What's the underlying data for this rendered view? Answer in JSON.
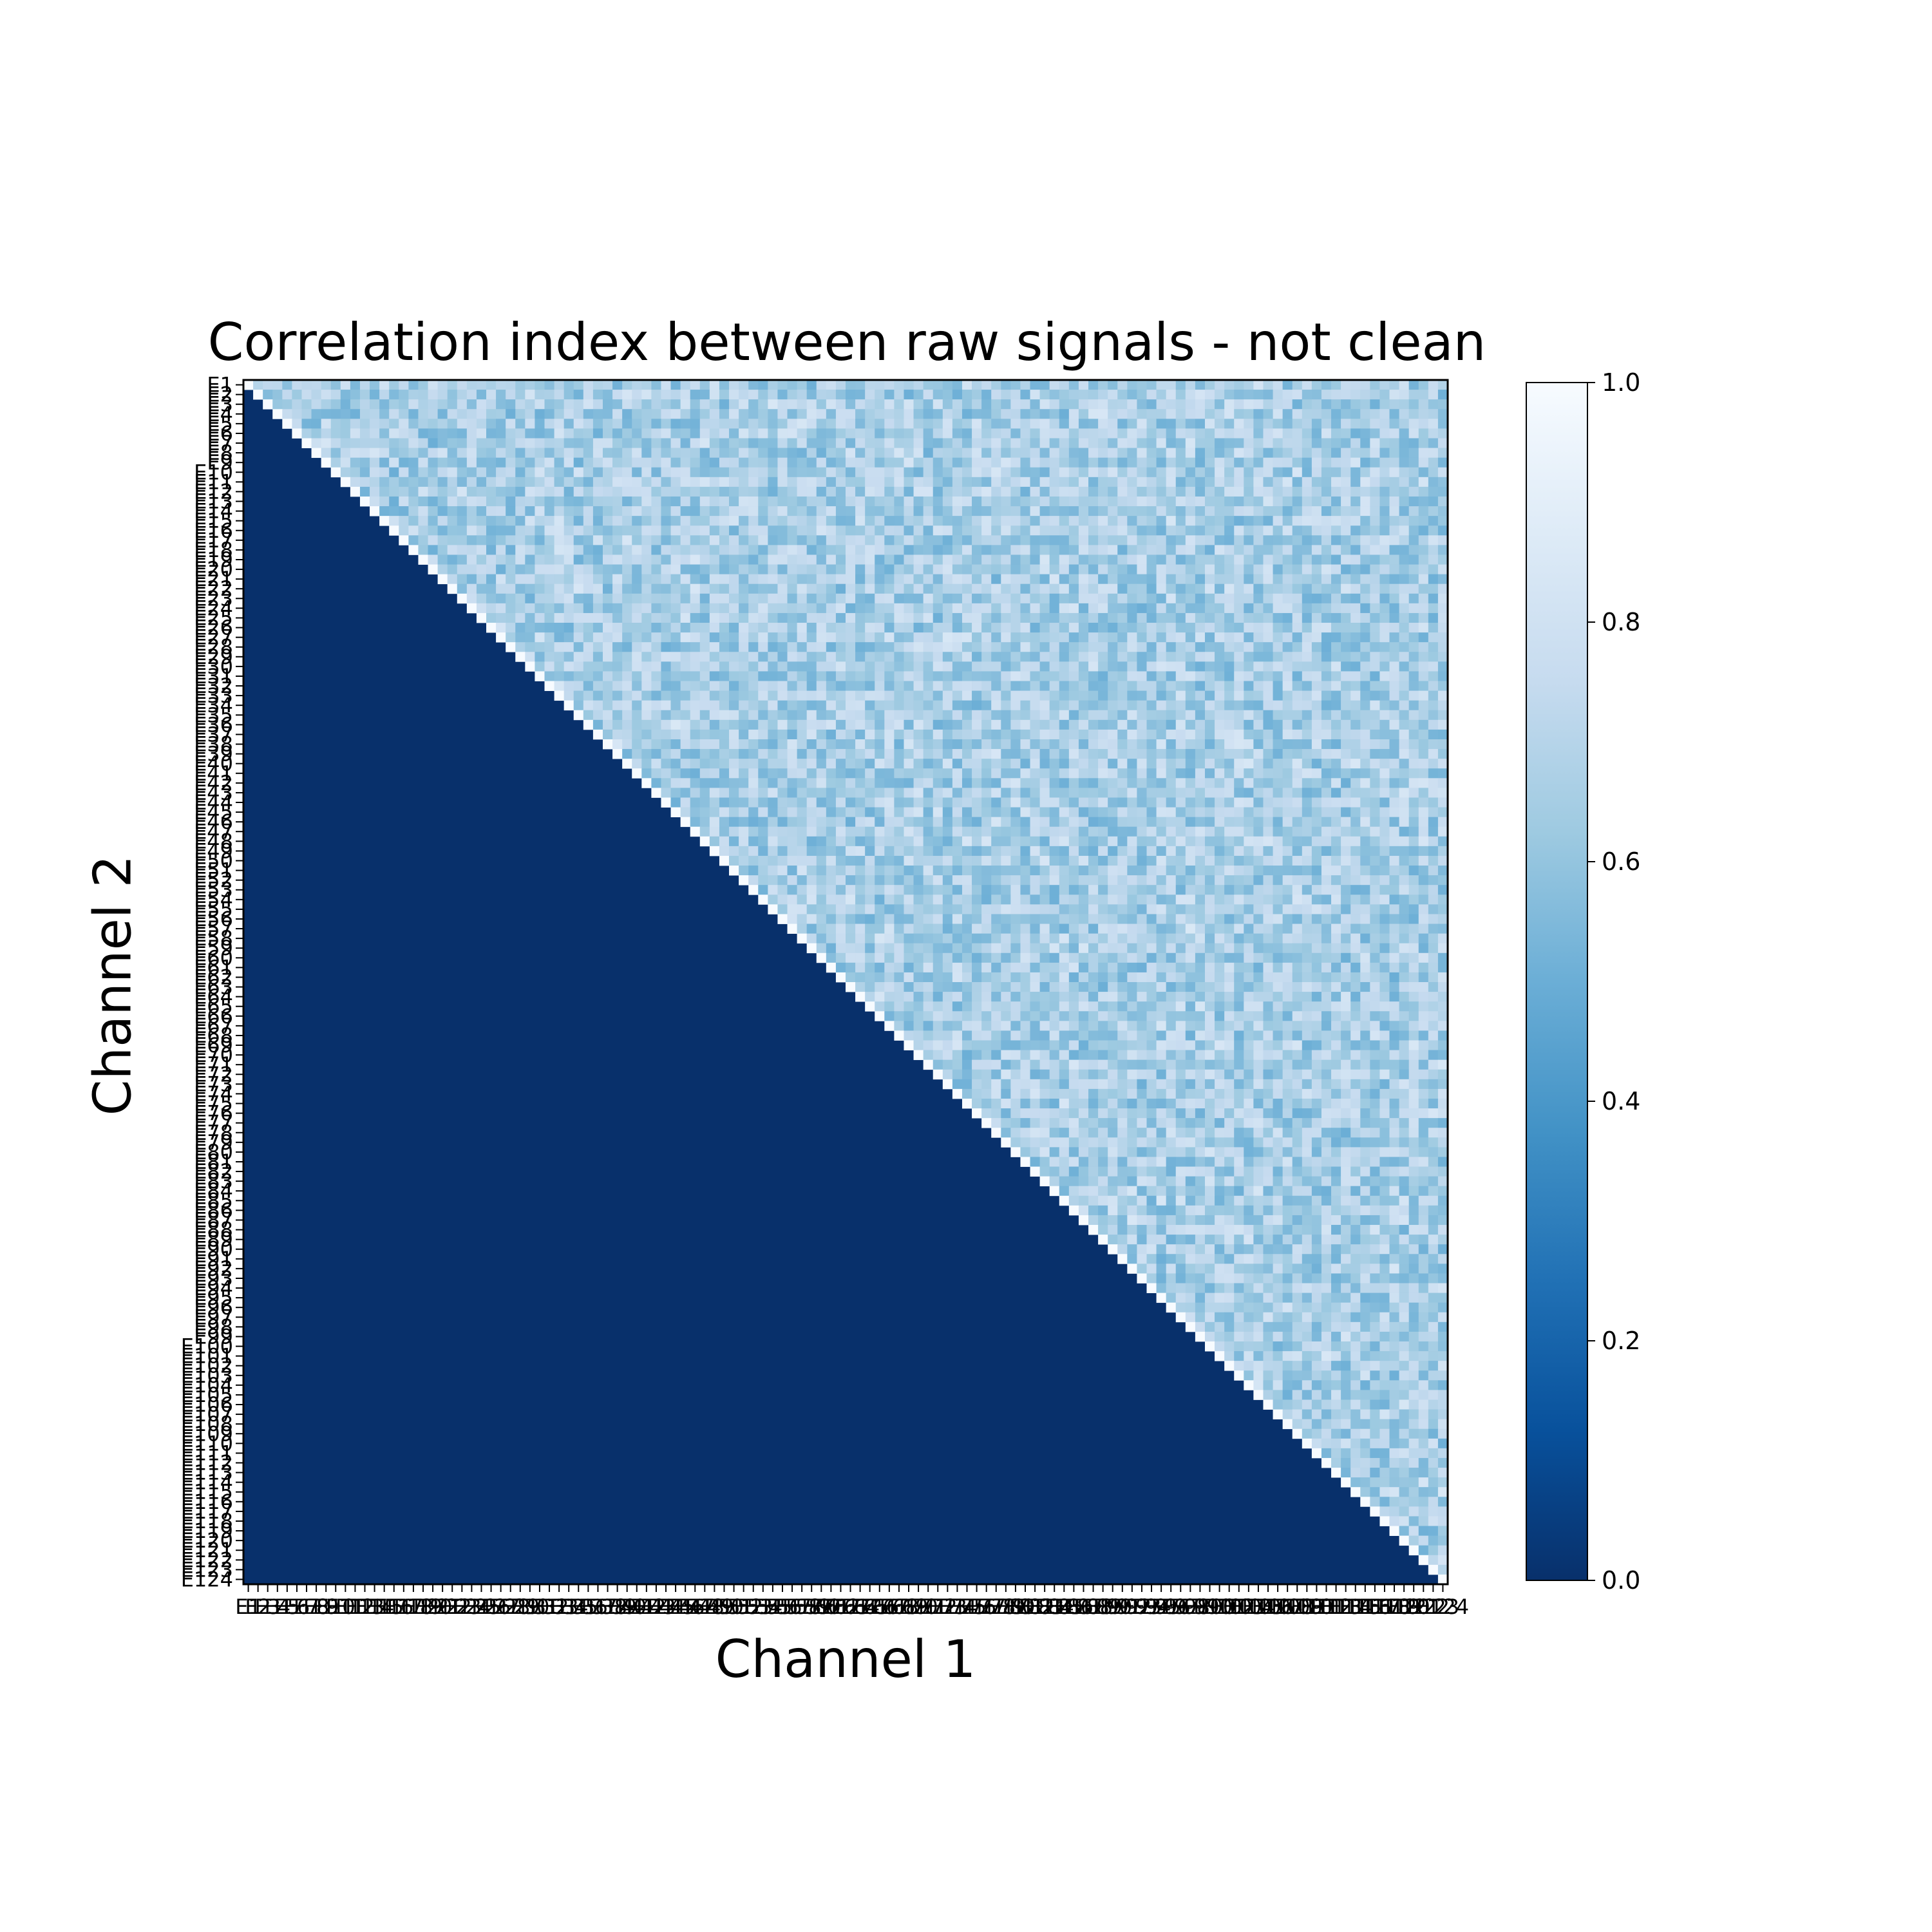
{
  "chart_data": {
    "type": "heatmap",
    "title": "Correlation index between raw signals - not clean",
    "xlabel": "Channel 1",
    "ylabel": "Channel 2",
    "n_channels": 124,
    "label_prefix": "E",
    "values_shown": "upper triangle (lower triangle and diagonal-below displayed as 0.0)",
    "diagonal_value": 1.0,
    "typical_offdiagonal_range": [
      0.35,
      0.85
    ],
    "colormap": "Blues_r",
    "colors": {
      "low": "#08306b",
      "high": "#f7fbff"
    },
    "colorbar": {
      "min": 0.0,
      "max": 1.0,
      "ticks": [
        "0.0",
        "0.2",
        "0.4",
        "0.6",
        "0.8",
        "1.0"
      ]
    }
  }
}
